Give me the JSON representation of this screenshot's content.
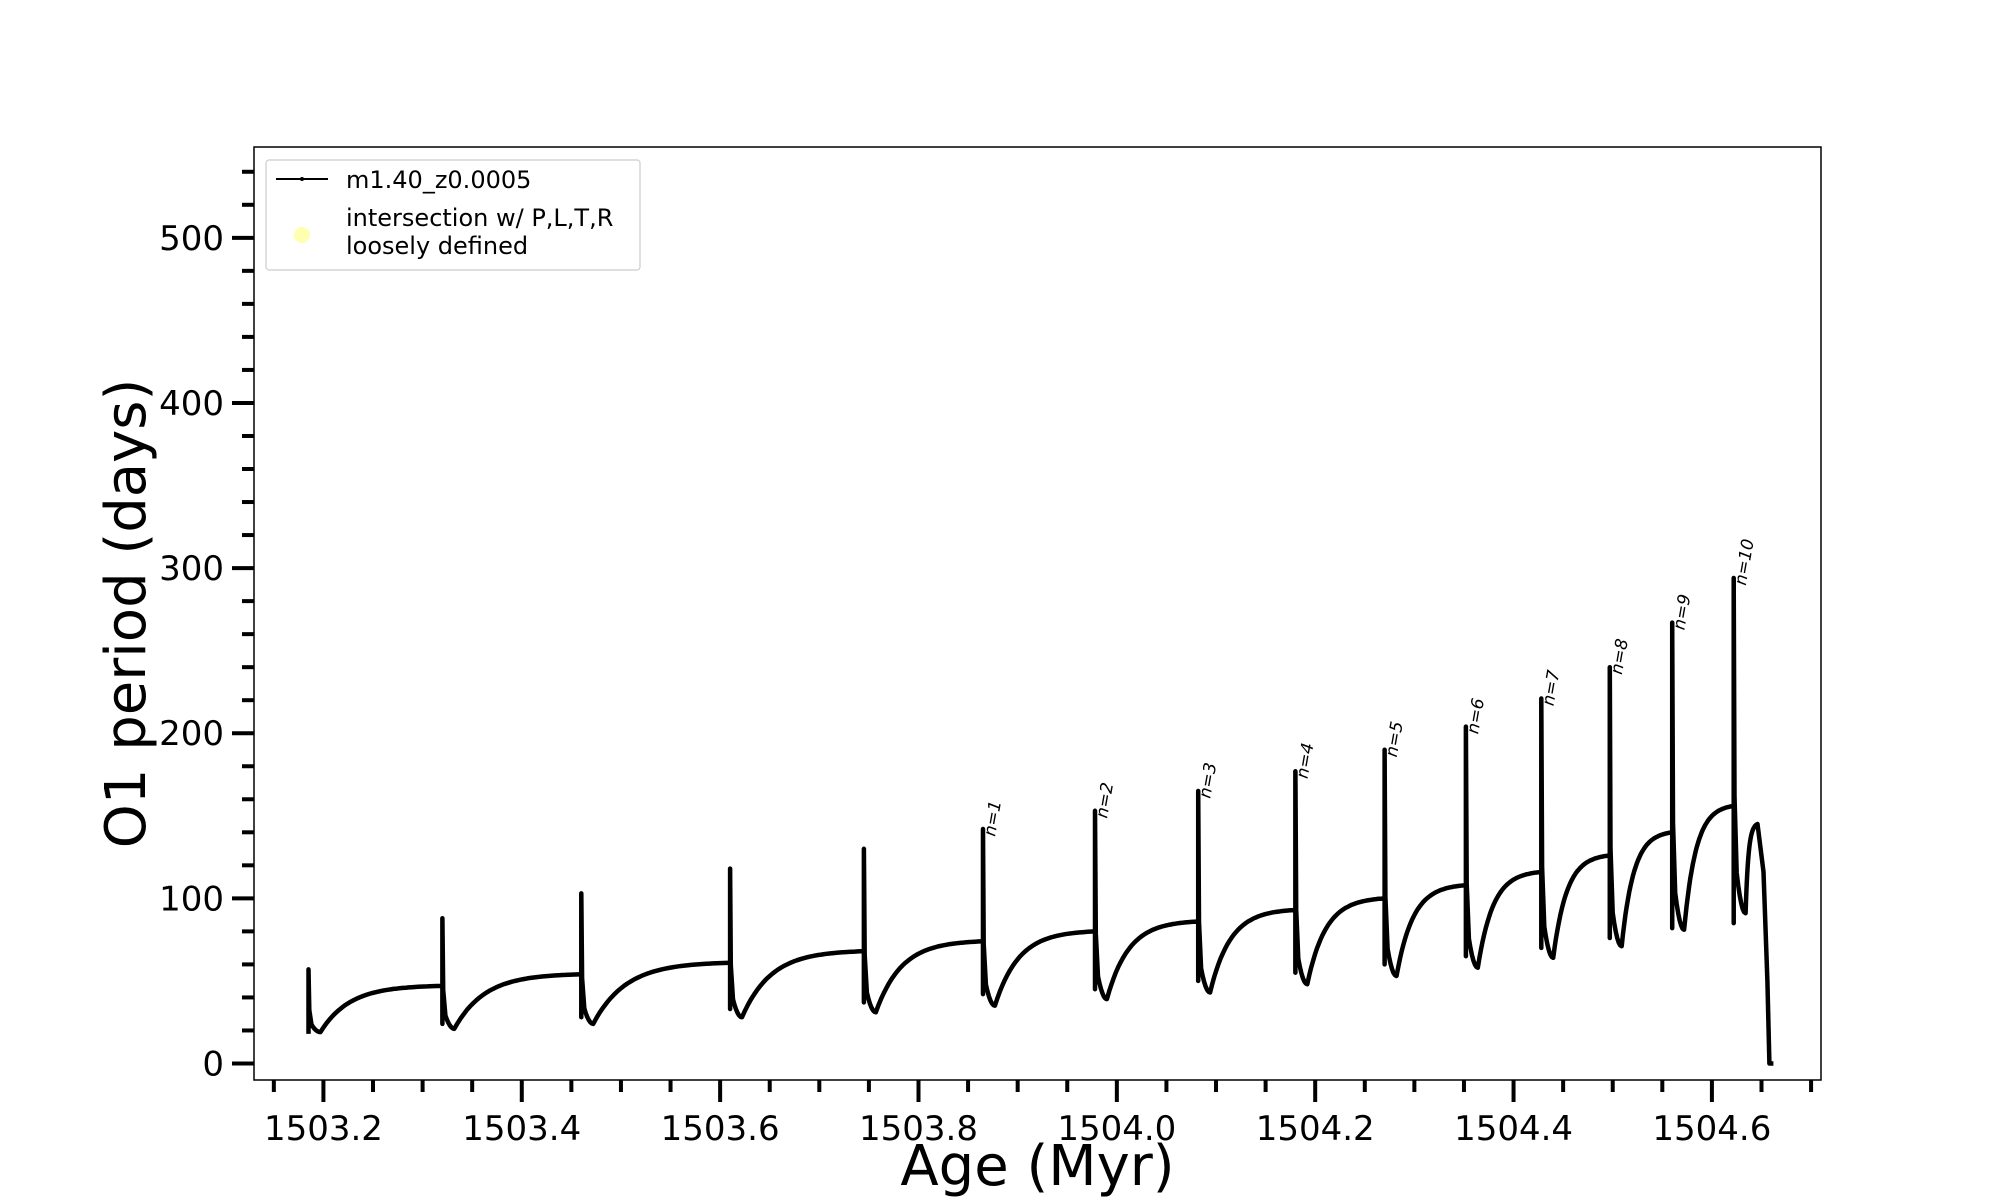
{
  "chart_data": {
    "type": "line",
    "xlabel": "Age (Myr)",
    "ylabel": "O1 period (days)",
    "xlim": [
      1503.13,
      1504.71
    ],
    "ylim": [
      -10,
      555
    ],
    "x_ticks": [
      1503.2,
      1503.4,
      1503.6,
      1503.8,
      1504.0,
      1504.2,
      1504.4,
      1504.6
    ],
    "x_tick_labels": [
      "1503.2",
      "1503.4",
      "1503.6",
      "1503.8",
      "1504.0",
      "1504.2",
      "1504.4",
      "1504.6"
    ],
    "y_ticks": [
      0,
      100,
      200,
      300,
      400,
      500
    ],
    "y_tick_labels": [
      "0",
      "100",
      "200",
      "300",
      "400",
      "500"
    ],
    "y_minor_step": 20,
    "x_minor_step": 0.05,
    "grid": false,
    "legend": {
      "placement": "top-left",
      "entries": [
        {
          "label": "m1.40_z0.0005",
          "style": "line",
          "color": "#000000"
        },
        {
          "label_lines": [
            "intersection w/ P,L,T,R",
            "loosely defined"
          ],
          "style": "marker",
          "color": "#ffffb0"
        }
      ]
    },
    "series": [
      {
        "name": "m1.40_z0.0005",
        "color": "#000000",
        "pulses": [
          {
            "x": 1503.185,
            "peak": 57,
            "dip": 18,
            "min": 19,
            "plateau": 47
          },
          {
            "x": 1503.32,
            "peak": 88,
            "dip": 24,
            "min": 21,
            "plateau": 54
          },
          {
            "x": 1503.46,
            "peak": 103,
            "dip": 28,
            "min": 24,
            "plateau": 61
          },
          {
            "x": 1503.61,
            "peak": 118,
            "dip": 33,
            "min": 28,
            "plateau": 68
          },
          {
            "x": 1503.745,
            "peak": 130,
            "dip": 37,
            "min": 31,
            "plateau": 74
          },
          {
            "x": 1503.865,
            "peak": 142,
            "dip": 42,
            "min": 35,
            "plateau": 80,
            "label": "n=1"
          },
          {
            "x": 1503.978,
            "peak": 153,
            "dip": 45,
            "min": 39,
            "plateau": 86,
            "label": "n=2"
          },
          {
            "x": 1504.082,
            "peak": 165,
            "dip": 50,
            "min": 43,
            "plateau": 93,
            "label": "n=3"
          },
          {
            "x": 1504.18,
            "peak": 177,
            "dip": 55,
            "min": 48,
            "plateau": 100,
            "label": "n=4"
          },
          {
            "x": 1504.27,
            "peak": 190,
            "dip": 60,
            "min": 53,
            "plateau": 108,
            "label": "n=5"
          },
          {
            "x": 1504.352,
            "peak": 204,
            "dip": 65,
            "min": 58,
            "plateau": 116,
            "label": "n=6"
          },
          {
            "x": 1504.428,
            "peak": 221,
            "dip": 70,
            "min": 64,
            "plateau": 126,
            "label": "n=7"
          },
          {
            "x": 1504.497,
            "peak": 240,
            "dip": 76,
            "min": 71,
            "plateau": 140,
            "label": "n=8"
          },
          {
            "x": 1504.56,
            "peak": 267,
            "dip": 82,
            "min": 81,
            "plateau": 156,
            "label": "n=9"
          },
          {
            "x": 1504.622,
            "peak": 294,
            "dip": 85,
            "min": 91,
            "plateau": 145,
            "label": "n=10"
          }
        ],
        "final_drop": {
          "x": 1504.658,
          "y": 0
        }
      }
    ]
  }
}
